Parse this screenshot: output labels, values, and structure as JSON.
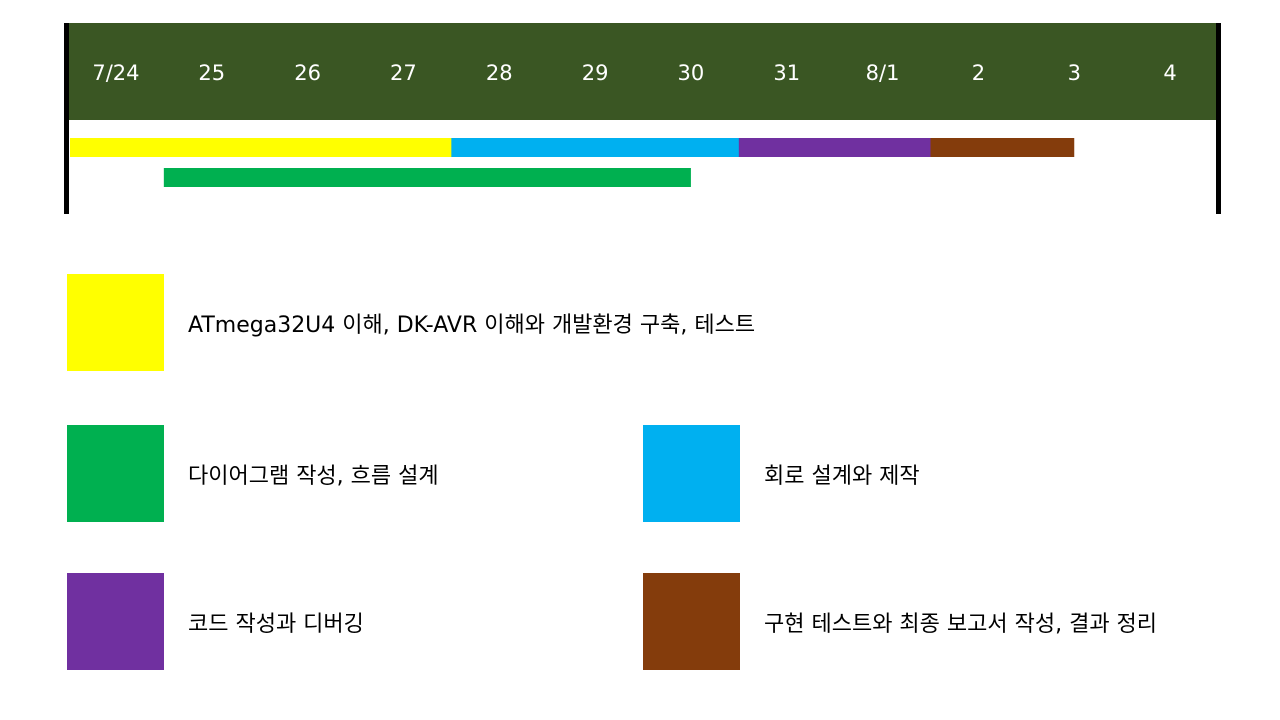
{
  "colors": {
    "header": "#3a5623",
    "header_text": "#ffffff",
    "edge": "#000000"
  },
  "chart_data": {
    "type": "gantt",
    "dates": [
      "7/24",
      "25",
      "26",
      "27",
      "28",
      "29",
      "30",
      "31",
      "8/1",
      "2",
      "3",
      "4"
    ],
    "tasks": [
      {
        "label": "ATmega32U4 이해, DK-AVR 이해와 개발환경 구축, 테스트",
        "start": "7/24",
        "end": "28",
        "color": "#ffff00"
      },
      {
        "label": "다이어그램 작성, 흐름 설계",
        "start": "25",
        "end": "30",
        "color": "#00b050"
      },
      {
        "label": "회로 설계와 제작",
        "start": "28",
        "end": "31",
        "color": "#00b0f0"
      },
      {
        "label": "코드 작성과 디버깅",
        "start": "31",
        "end": "2",
        "color": "#7030a0"
      },
      {
        "label": "구현 테스트와 최종 보고서 작성, 결과 정리",
        "start": "2",
        "end": "3",
        "color": "#843c0c"
      }
    ]
  }
}
